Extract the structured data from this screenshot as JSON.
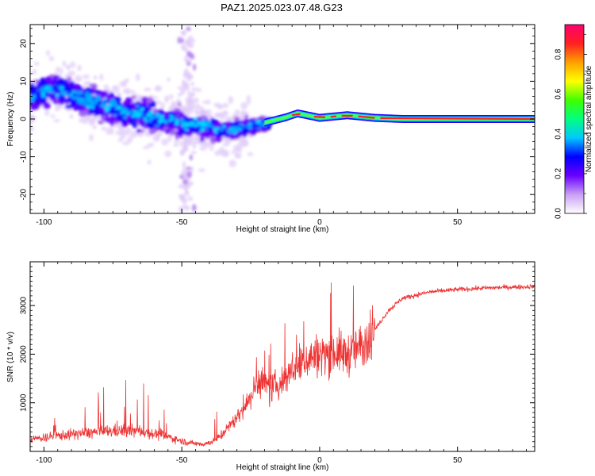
{
  "title": "PAZ1.2025.023.07.48.G23",
  "chart_data": [
    {
      "type": "heatmap",
      "xlabel": "Height of straight line (km)",
      "ylabel": "Frequency (Hz)",
      "xlim": [
        -105,
        78
      ],
      "ylim": [
        -25,
        25
      ],
      "xticks": [
        -100,
        -50,
        0,
        50
      ],
      "yticks": [
        20,
        10,
        0,
        -10,
        -20
      ],
      "colorbar": {
        "label": "Normalized spectral amplitude",
        "range": [
          0,
          0.95
        ],
        "ticks": [
          0.0,
          0.2,
          0.4,
          0.6,
          0.8
        ]
      },
      "ridge": [
        {
          "x": -103,
          "y": 6
        },
        {
          "x": -95,
          "y": 8
        },
        {
          "x": -85,
          "y": 5
        },
        {
          "x": -75,
          "y": 3
        },
        {
          "x": -65,
          "y": 1
        },
        {
          "x": -55,
          "y": -0.5
        },
        {
          "x": -45,
          "y": -1.5
        },
        {
          "x": -35,
          "y": -3
        },
        {
          "x": -28,
          "y": -2.5
        },
        {
          "x": -20,
          "y": -1
        },
        {
          "x": -12,
          "y": 0.5
        },
        {
          "x": -8,
          "y": 1.5
        },
        {
          "x": 0,
          "y": 0.3
        },
        {
          "x": 10,
          "y": 1
        },
        {
          "x": 20,
          "y": 0.3
        },
        {
          "x": 30,
          "y": 0
        },
        {
          "x": 78,
          "y": 0
        }
      ]
    },
    {
      "type": "line",
      "xlabel": "Height of straight line (km)",
      "ylabel": "SNR (10 * v/v)",
      "xlim": [
        -105,
        78
      ],
      "ylim": [
        0,
        3900
      ],
      "xticks": [
        -100,
        -50,
        0,
        50
      ],
      "yticks": [
        1000,
        2000,
        3000
      ],
      "series": [
        {
          "color": "#ee3333",
          "envelope": [
            {
              "x": -105,
              "y": 250
            },
            {
              "x": -95,
              "y": 320
            },
            {
              "x": -85,
              "y": 380
            },
            {
              "x": -75,
              "y": 420
            },
            {
              "x": -65,
              "y": 420
            },
            {
              "x": -55,
              "y": 300
            },
            {
              "x": -48,
              "y": 180
            },
            {
              "x": -42,
              "y": 150
            },
            {
              "x": -38,
              "y": 220
            },
            {
              "x": -35,
              "y": 380
            },
            {
              "x": -30,
              "y": 700
            },
            {
              "x": -25,
              "y": 1100
            },
            {
              "x": -22,
              "y": 1500
            },
            {
              "x": -18,
              "y": 1300
            },
            {
              "x": -14,
              "y": 1400
            },
            {
              "x": -10,
              "y": 1700
            },
            {
              "x": -5,
              "y": 1900
            },
            {
              "x": 0,
              "y": 2000
            },
            {
              "x": 5,
              "y": 2050
            },
            {
              "x": 10,
              "y": 2000
            },
            {
              "x": 15,
              "y": 2150
            },
            {
              "x": 20,
              "y": 2500
            },
            {
              "x": 25,
              "y": 2900
            },
            {
              "x": 30,
              "y": 3150
            },
            {
              "x": 40,
              "y": 3280
            },
            {
              "x": 50,
              "y": 3330
            },
            {
              "x": 60,
              "y": 3360
            },
            {
              "x": 70,
              "y": 3380
            },
            {
              "x": 78,
              "y": 3390
            }
          ]
        }
      ]
    }
  ]
}
